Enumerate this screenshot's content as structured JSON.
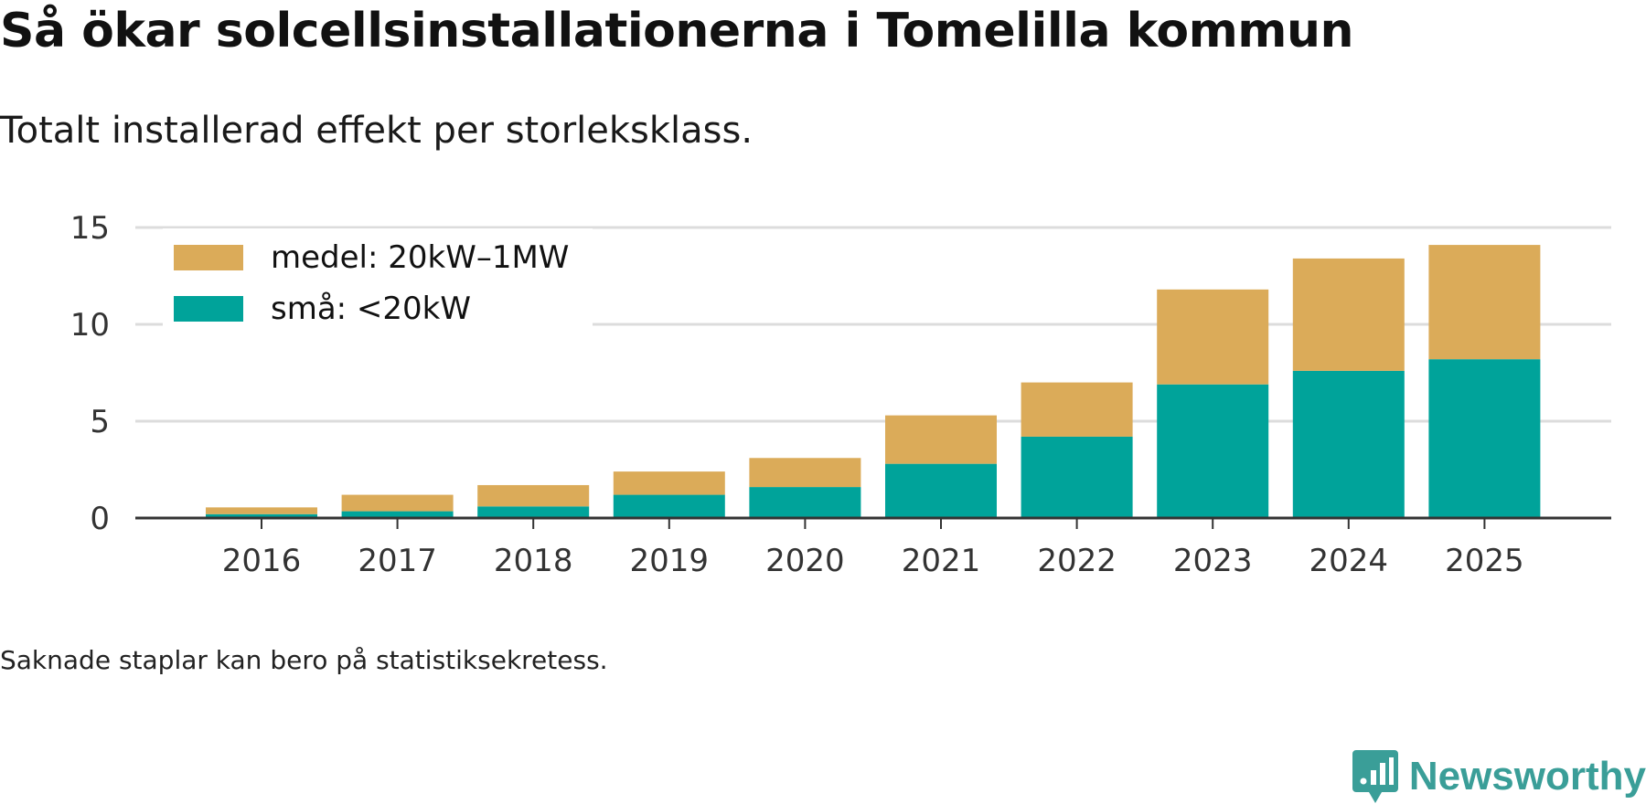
{
  "header": {
    "title": "Så ökar solcellsinstallationerna i Tomelilla kommun",
    "subtitle": "Totalt installerad effekt per storleksklass."
  },
  "footer": {
    "note": "Saknade staplar kan bero på statistiksekretess.",
    "brand": "Newsworthy"
  },
  "colors": {
    "medel": "#dbab59",
    "sma": "#00a39a",
    "brand": "#3a9e98"
  },
  "chart_data": {
    "type": "bar",
    "stacked": true,
    "categories": [
      "2016",
      "2017",
      "2018",
      "2019",
      "2020",
      "2021",
      "2022",
      "2023",
      "2024",
      "2025"
    ],
    "series": [
      {
        "name": "små: <20kW",
        "key": "sma",
        "values": [
          0.2,
          0.35,
          0.6,
          1.2,
          1.6,
          2.8,
          4.2,
          6.9,
          7.6,
          8.2
        ]
      },
      {
        "name": "medel: 20kW–1MW",
        "key": "medel",
        "values": [
          0.35,
          0.85,
          1.1,
          1.2,
          1.5,
          2.5,
          2.8,
          4.9,
          5.8,
          5.9
        ]
      }
    ],
    "legend": [
      "medel: 20kW–1MW",
      "små: <20kW"
    ],
    "yticks": [
      "0",
      "5",
      "10",
      "15"
    ],
    "ylim": [
      0,
      15
    ],
    "xlabel": "",
    "ylabel": "",
    "legend_position": "top-left",
    "grid": true
  }
}
